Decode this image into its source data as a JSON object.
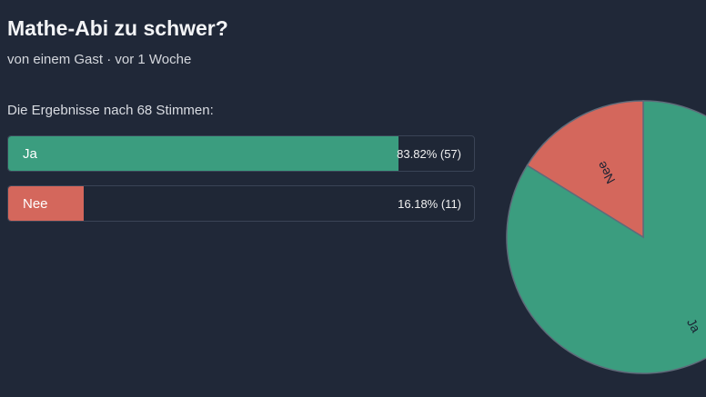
{
  "poll": {
    "title": "Mathe-Abi zu schwer?",
    "meta": "von einem Gast · vor 1 Woche",
    "results_caption": "Die Ergebnisse nach 68 Stimmen:",
    "options": [
      {
        "label": "Ja",
        "value_text": "83.82% (57)",
        "percent": 83.82,
        "votes": 57,
        "color": "#3b9d7f"
      },
      {
        "label": "Nee",
        "value_text": "16.18% (11)",
        "percent": 16.18,
        "votes": 11,
        "color": "#d4675c"
      }
    ]
  },
  "chart_data": {
    "type": "pie",
    "categories": [
      "Ja",
      "Nee"
    ],
    "values": [
      57,
      11
    ],
    "colors": [
      "#3b9d7f",
      "#d4675c"
    ]
  }
}
